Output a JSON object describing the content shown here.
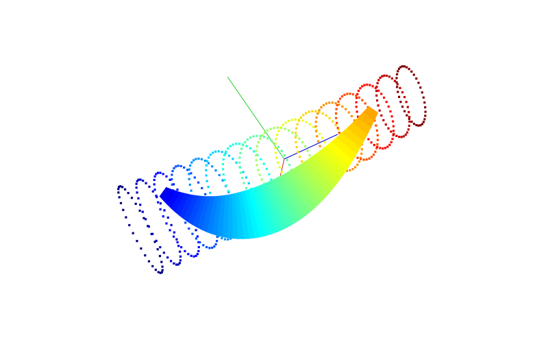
{
  "chart_data": {
    "type": "scatter",
    "projection": "3d",
    "title": "",
    "xlabel": "",
    "ylabel": "",
    "zlabel": "",
    "colormap": "jet",
    "colormap_stops": [
      "#00007f",
      "#0000ff",
      "#0080ff",
      "#00ffff",
      "#80ff80",
      "#ffff00",
      "#ff8000",
      "#ff0000",
      "#7f0000"
    ],
    "axes_colors": {
      "x": "#0000cc",
      "y": "#22cc22",
      "z": "#cc2222"
    },
    "grid": false,
    "legend": "none",
    "series": [
      {
        "kind": "point-cloud-rings",
        "ring_count": 16,
        "color_parameter_range": [
          0,
          1
        ]
      },
      {
        "kind": "curved-surface-band",
        "color_parameter_range": [
          0.1,
          0.72
        ]
      }
    ]
  }
}
